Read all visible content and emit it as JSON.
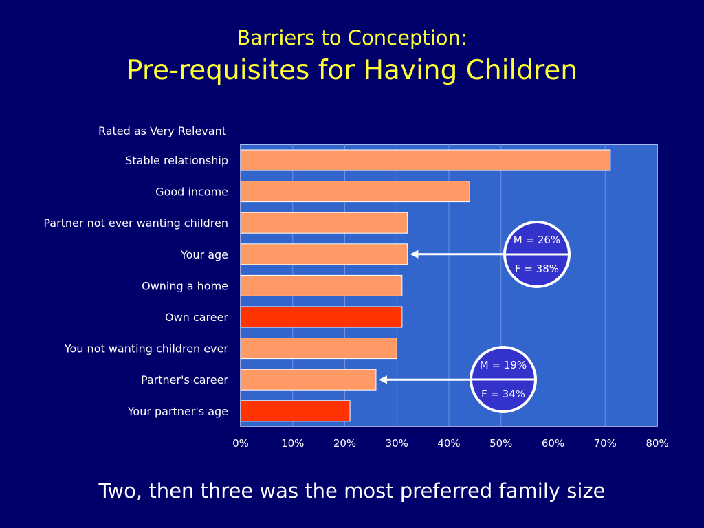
{
  "title": {
    "line1": "Barriers to Conception:",
    "line2": "Pre-requisites for Having Children"
  },
  "footer": "Two, then three was the most preferred family size",
  "colors": {
    "background": "#00006b",
    "plot_area": "#3366cc",
    "bar_default": "#ff9966",
    "bar_highlight": "#ff3300",
    "title": "#ffff33",
    "bubble_fill": "#3333cc"
  },
  "chart_data": {
    "type": "bar",
    "orientation": "horizontal",
    "subtitle": "Rated as Very Relevant",
    "categories": [
      "Stable relationship",
      "Good income",
      "Partner not ever wanting children",
      "Your age",
      "Owning a home",
      "Own career",
      "You not wanting children ever",
      "Partner's career",
      "Your partner's age"
    ],
    "values": [
      71,
      44,
      32,
      32,
      31,
      31,
      30,
      26,
      21
    ],
    "highlighted": [
      false,
      false,
      false,
      false,
      false,
      true,
      false,
      false,
      true
    ],
    "xlim": [
      0,
      80
    ],
    "xticks": [
      0,
      10,
      20,
      30,
      40,
      50,
      60,
      70,
      80
    ],
    "xtick_labels": [
      "0%",
      "10%",
      "20%",
      "30%",
      "40%",
      "50%",
      "60%",
      "70%",
      "80%"
    ],
    "grid": true,
    "annotations": [
      {
        "category": "Your age",
        "top": "M = 26%",
        "bottom": "F = 38%"
      },
      {
        "category": "Partner's career",
        "top": "M = 19%",
        "bottom": "F = 34%"
      }
    ]
  }
}
